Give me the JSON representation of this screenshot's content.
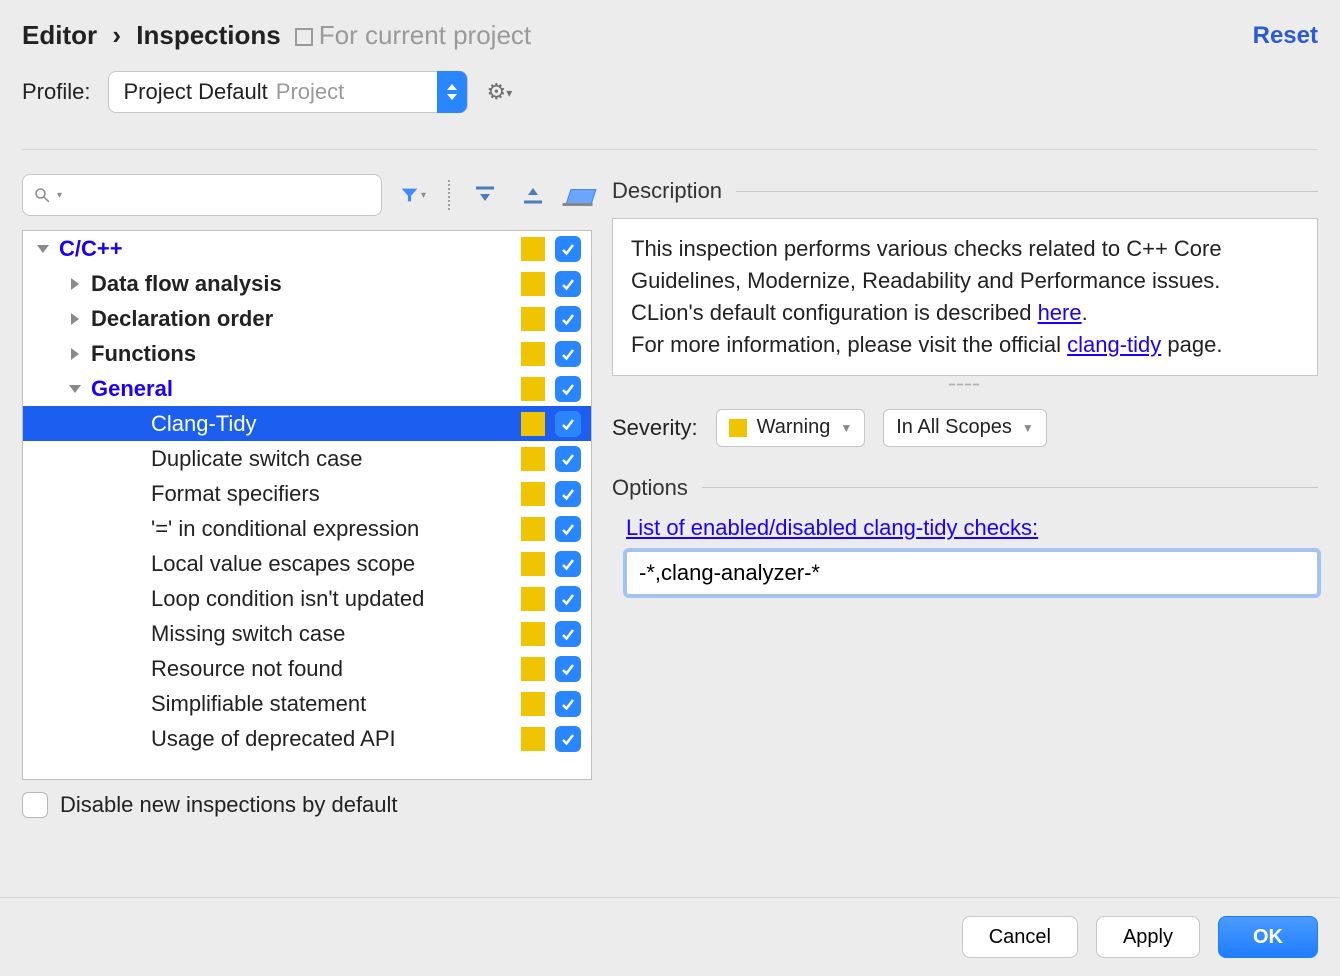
{
  "colors": {
    "background": "#ececec",
    "accent_blue": "#2a86ff",
    "link_blue": "#1b00ff",
    "selection": "#1b5ef0",
    "warning_yellow": "#f0c400",
    "border": "#c6c6c6"
  },
  "breadcrumb": {
    "root": "Editor",
    "current": "Inspections",
    "sep": "›"
  },
  "scope": {
    "label": "For current project"
  },
  "reset": {
    "label": "Reset"
  },
  "profile": {
    "label": "Profile:",
    "selected": "Project Default",
    "suffix": "Project"
  },
  "search": {
    "placeholder": ""
  },
  "toolbar_icons": {
    "filter": "filter-icon",
    "expand_all": "expand-all-icon",
    "collapse_all": "collapse-all-icon",
    "reset_defaults": "reset-defaults-icon"
  },
  "tree": {
    "root": {
      "label": "C/C++",
      "expanded": true,
      "bold": true,
      "blue": true,
      "warning": true,
      "checked": true
    },
    "children": [
      {
        "label": "Data flow analysis",
        "expanded": false,
        "bold": true,
        "warning": true,
        "checked": true
      },
      {
        "label": "Declaration order",
        "expanded": false,
        "bold": true,
        "warning": true,
        "checked": true
      },
      {
        "label": "Functions",
        "expanded": false,
        "bold": true,
        "warning": true,
        "checked": true
      },
      {
        "label": "General",
        "expanded": true,
        "bold": true,
        "blue": true,
        "warning": true,
        "checked": true,
        "children": [
          {
            "label": "Clang-Tidy",
            "selected": true,
            "warning": true,
            "checked": true
          },
          {
            "label": "Duplicate switch case",
            "warning": true,
            "checked": true
          },
          {
            "label": "Format specifiers",
            "warning": true,
            "checked": true
          },
          {
            "label": "'=' in conditional expression",
            "warning": true,
            "checked": true
          },
          {
            "label": "Local value escapes scope",
            "warning": true,
            "checked": true
          },
          {
            "label": "Loop condition isn't updated",
            "warning": true,
            "checked": true
          },
          {
            "label": "Missing switch case",
            "warning": true,
            "checked": true
          },
          {
            "label": "Resource not found",
            "warning": true,
            "checked": true
          },
          {
            "label": "Simplifiable statement",
            "warning": true,
            "checked": true
          },
          {
            "label": "Usage of deprecated API",
            "warning": true,
            "checked": true
          }
        ]
      }
    ]
  },
  "disable_new": {
    "label": "Disable new inspections by default",
    "checked": false
  },
  "description": {
    "heading": "Description",
    "p1": "This inspection performs various checks related to C++ Core Guidelines, Modernize, Readability and Performance issues.",
    "p2a": "CLion's default configuration is described ",
    "p2_link": "here",
    "p2b": ".",
    "p3a": "For more information, please visit the official ",
    "p3_link": "clang-tidy",
    "p3b": " page."
  },
  "severity": {
    "label": "Severity:",
    "value": "Warning",
    "scope": "In All Scopes"
  },
  "options": {
    "heading": "Options",
    "link": "List of enabled/disabled clang-tidy checks:",
    "value": "-*,clang-analyzer-*"
  },
  "buttons": {
    "cancel": "Cancel",
    "apply": "Apply",
    "ok": "OK"
  }
}
